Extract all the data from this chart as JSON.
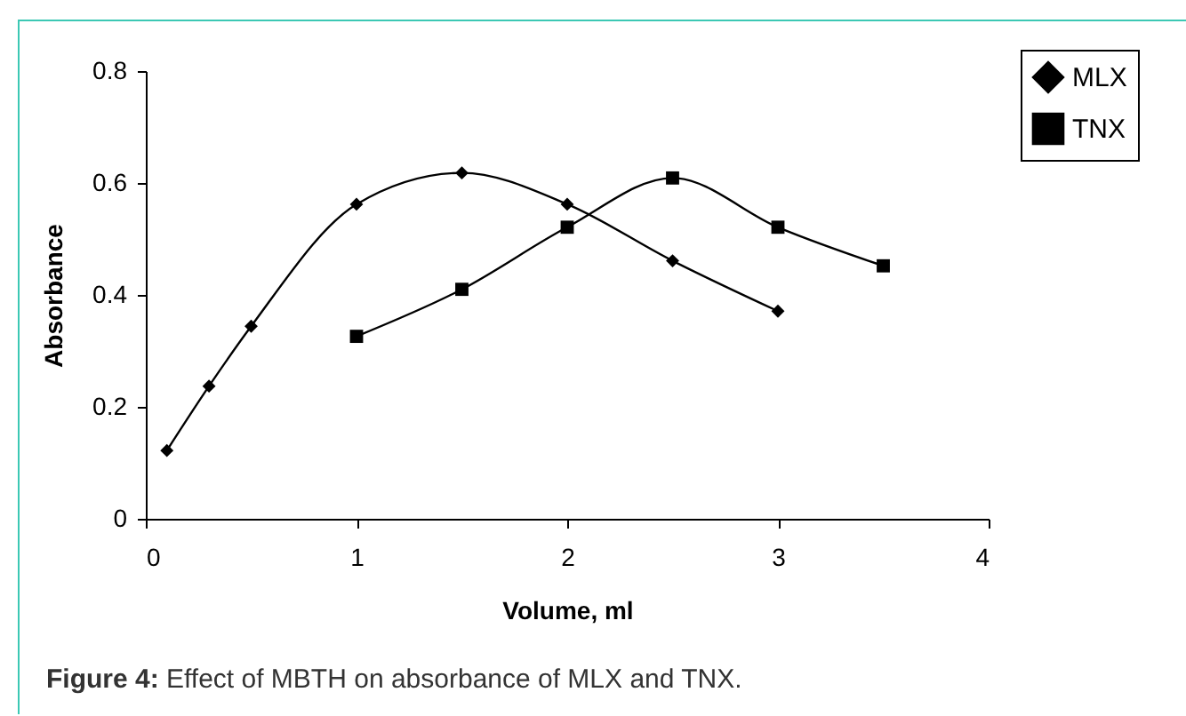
{
  "chart_data": {
    "type": "line",
    "xlabel": "Volume, ml",
    "ylabel": "Absorbance",
    "annotations": [
      "Figure 4: Effect of MBTH on absorbance of MLX and TNX."
    ],
    "xlim": [
      0,
      4
    ],
    "xticks": [
      0,
      1,
      2,
      3,
      4
    ],
    "ylim": [
      0,
      0.8
    ],
    "yticks": [
      0,
      0.2,
      0.4,
      0.6,
      0.8
    ],
    "grid": false,
    "legend": "top right",
    "series": [
      {
        "name": "MLX",
        "color": "#000000",
        "marker": "diamond",
        "x": [
          0.1,
          0.3,
          0.5,
          1,
          1.5,
          2,
          2.5,
          3
        ],
        "values": [
          0.122,
          0.237,
          0.344,
          0.562,
          0.618,
          0.562,
          0.461,
          0.371
        ]
      },
      {
        "name": "TNX",
        "color": "#000000",
        "marker": "square",
        "x": [
          1,
          1.5,
          2,
          2.5,
          3,
          3.5
        ],
        "values": [
          0.326,
          0.41,
          0.521,
          0.609,
          0.521,
          0.452
        ]
      }
    ]
  }
}
